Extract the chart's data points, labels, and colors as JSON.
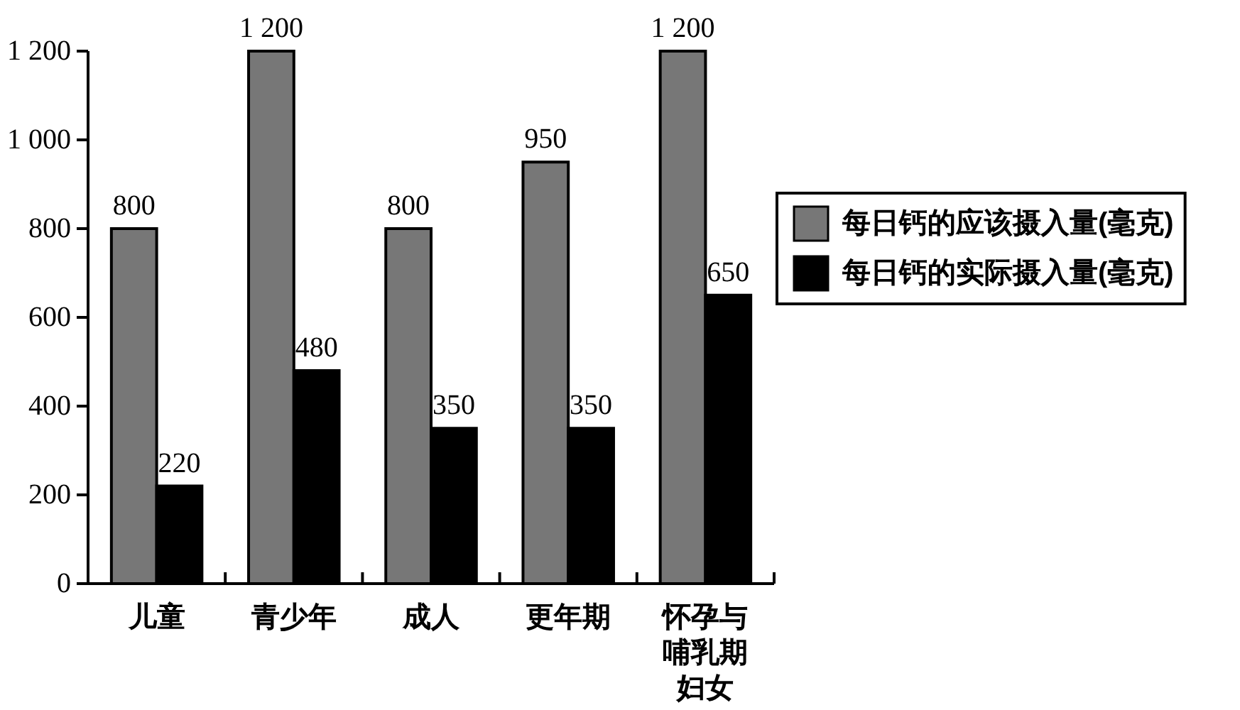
{
  "chart_data": {
    "type": "bar",
    "categories": [
      "儿童",
      "青少年",
      "成人",
      "更年期",
      "怀孕与哺乳期妇女"
    ],
    "series": [
      {
        "name": "每日钙的应该摄入量(毫克)",
        "color": "#777777",
        "values": [
          800,
          1200,
          800,
          950,
          1200
        ],
        "value_labels": [
          "800",
          "1 200",
          "800",
          "950",
          "1 200"
        ]
      },
      {
        "name": "每日钙的实际摄入量(毫克)",
        "color": "#000000",
        "values": [
          220,
          480,
          350,
          350,
          650
        ],
        "value_labels": [
          "220",
          "480",
          "350",
          "350",
          "650"
        ]
      }
    ],
    "ylim": [
      0,
      1200
    ],
    "yticks": [
      0,
      200,
      400,
      600,
      800,
      {
        "value": 1000,
        "label": "1 000"
      },
      {
        "value": 1200,
        "label": "1 200"
      }
    ],
    "legend": "right"
  }
}
